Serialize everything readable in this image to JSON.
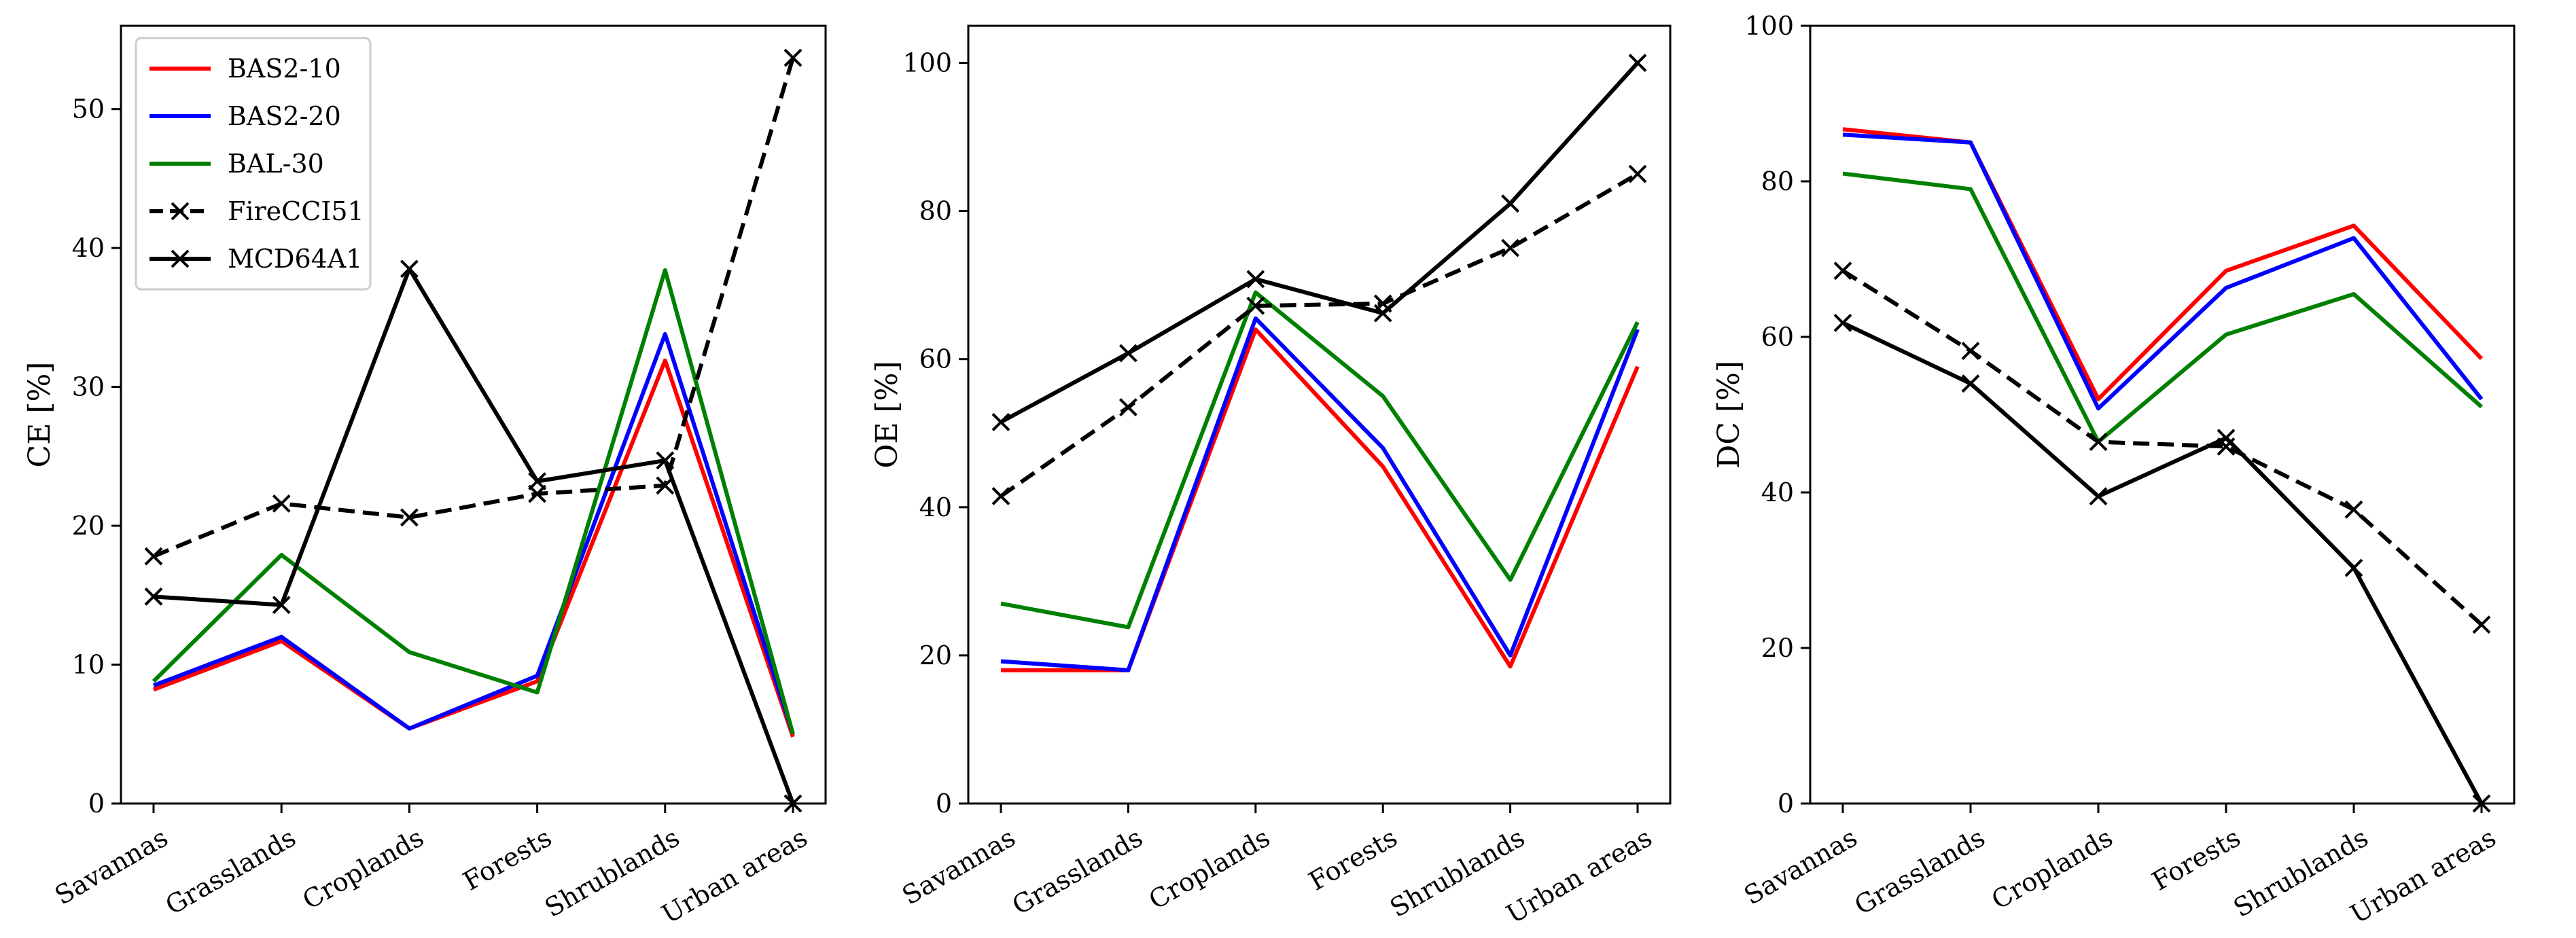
{
  "chart_data": [
    {
      "type": "line",
      "ylabel": "CE [%]",
      "ylim": [
        0,
        56
      ],
      "yticks": [
        0,
        10,
        20,
        30,
        40,
        50
      ],
      "categories": [
        "Savannas",
        "Grasslands",
        "Croplands",
        "Forests",
        "Shrublands",
        "Urban areas"
      ],
      "legend": "top-left",
      "series": [
        {
          "name": "BAS2-10",
          "color": "#ff0000",
          "style": "solid",
          "marker": "none",
          "values": [
            8.2,
            11.7,
            5.4,
            8.8,
            31.9,
            4.8
          ]
        },
        {
          "name": "BAS2-20",
          "color": "#0000ff",
          "style": "solid",
          "marker": "none",
          "values": [
            8.5,
            12.0,
            5.4,
            9.2,
            33.8,
            5.0
          ]
        },
        {
          "name": "BAL-30",
          "color": "#008000",
          "style": "solid",
          "marker": "none",
          "values": [
            8.8,
            17.9,
            10.9,
            8.0,
            38.4,
            5.0
          ]
        },
        {
          "name": "FireCCI51",
          "color": "#000000",
          "style": "dashed",
          "marker": "x",
          "values": [
            17.8,
            21.6,
            20.6,
            22.3,
            22.9,
            53.7
          ]
        },
        {
          "name": "MCD64A1",
          "color": "#000000",
          "style": "solid",
          "marker": "x",
          "values": [
            14.9,
            14.3,
            38.5,
            23.2,
            24.7,
            0.0
          ]
        }
      ]
    },
    {
      "type": "line",
      "ylabel": "OE [%]",
      "ylim": [
        0,
        105
      ],
      "yticks": [
        0,
        20,
        40,
        60,
        80,
        100
      ],
      "categories": [
        "Savannas",
        "Grasslands",
        "Croplands",
        "Forests",
        "Shrublands",
        "Urban areas"
      ],
      "series": [
        {
          "name": "BAS2-10",
          "color": "#ff0000",
          "style": "solid",
          "marker": "none",
          "values": [
            18.0,
            18.0,
            64.0,
            45.5,
            18.5,
            59.0
          ]
        },
        {
          "name": "BAS2-20",
          "color": "#0000ff",
          "style": "solid",
          "marker": "none",
          "values": [
            19.2,
            18.0,
            65.5,
            48.0,
            20.0,
            64.0
          ]
        },
        {
          "name": "BAL-30",
          "color": "#008000",
          "style": "solid",
          "marker": "none",
          "values": [
            27.0,
            23.8,
            69.0,
            55.0,
            30.2,
            65.0
          ]
        },
        {
          "name": "FireCCI51",
          "color": "#000000",
          "style": "dashed",
          "marker": "x",
          "values": [
            41.5,
            53.5,
            67.2,
            67.5,
            75.0,
            85.0
          ]
        },
        {
          "name": "MCD64A1",
          "color": "#000000",
          "style": "solid",
          "marker": "x",
          "values": [
            51.5,
            60.8,
            70.8,
            66.2,
            81.0,
            100.0
          ]
        }
      ]
    },
    {
      "type": "line",
      "ylabel": "DC [%]",
      "ylim": [
        0,
        100
      ],
      "yticks": [
        0,
        20,
        40,
        60,
        80,
        100
      ],
      "categories": [
        "Savannas",
        "Grasslands",
        "Croplands",
        "Forests",
        "Shrublands",
        "Urban areas"
      ],
      "series": [
        {
          "name": "BAS2-10",
          "color": "#ff0000",
          "style": "solid",
          "marker": "none",
          "values": [
            86.7,
            85.0,
            52.0,
            68.5,
            74.3,
            57.2
          ]
        },
        {
          "name": "BAS2-20",
          "color": "#0000ff",
          "style": "solid",
          "marker": "none",
          "values": [
            86.0,
            85.0,
            50.8,
            66.3,
            72.7,
            52.0
          ]
        },
        {
          "name": "BAL-30",
          "color": "#008000",
          "style": "solid",
          "marker": "none",
          "values": [
            81.0,
            79.0,
            46.5,
            60.3,
            65.5,
            51.0
          ]
        },
        {
          "name": "FireCCI51",
          "color": "#000000",
          "style": "dashed",
          "marker": "x",
          "values": [
            68.5,
            58.2,
            46.5,
            45.9,
            37.8,
            23.0
          ]
        },
        {
          "name": "MCD64A1",
          "color": "#000000",
          "style": "solid",
          "marker": "x",
          "values": [
            61.8,
            54.0,
            39.5,
            47.0,
            30.3,
            0.0
          ]
        }
      ]
    }
  ]
}
